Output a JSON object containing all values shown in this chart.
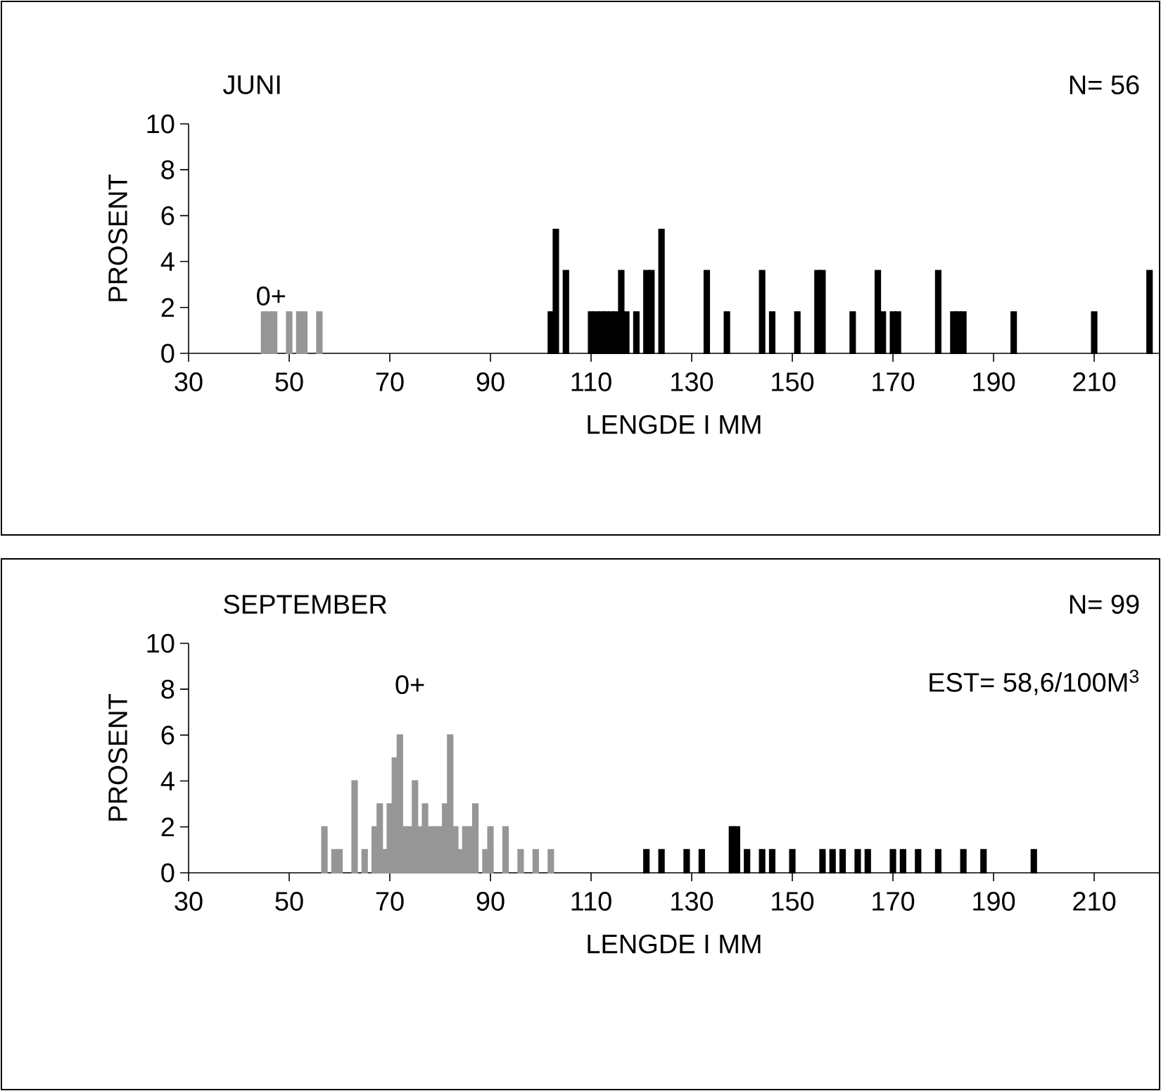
{
  "chart_data": [
    {
      "type": "bar",
      "title": "JUNI",
      "xlabel": "LENGDE I MM",
      "ylabel": "PROSENT",
      "annotations": [
        "N= 56",
        "0+"
      ],
      "xlim": [
        30,
        223
      ],
      "xticks": [
        30,
        50,
        70,
        90,
        110,
        130,
        150,
        170,
        190,
        210
      ],
      "ylim": [
        0,
        10
      ],
      "yticks": [
        0,
        2,
        4,
        6,
        8,
        10
      ],
      "series": [
        {
          "color": "#969696",
          "x": [
            45,
            46,
            47,
            50,
            52,
            53,
            56
          ],
          "values": [
            1.8,
            1.8,
            1.8,
            1.8,
            1.8,
            1.8,
            1.8
          ]
        },
        {
          "color": "#000000",
          "x": [
            102,
            103,
            105,
            110,
            111,
            112,
            113,
            114,
            115,
            116,
            117,
            119,
            121,
            122,
            124,
            133,
            137,
            144,
            146,
            151,
            155,
            156,
            162,
            167,
            168,
            170,
            171,
            179,
            182,
            183,
            184,
            194,
            210,
            221
          ],
          "values": [
            1.8,
            5.4,
            3.6,
            1.8,
            1.8,
            1.8,
            1.8,
            1.8,
            1.8,
            3.6,
            1.8,
            1.8,
            3.6,
            3.6,
            5.4,
            3.6,
            1.8,
            3.6,
            1.8,
            1.8,
            3.6,
            3.6,
            1.8,
            3.6,
            1.8,
            1.8,
            1.8,
            3.6,
            1.8,
            1.8,
            1.8,
            1.8,
            1.8,
            3.6
          ]
        }
      ]
    },
    {
      "type": "bar",
      "title": "SEPTEMBER",
      "xlabel": "LENGDE I MM",
      "ylabel": "PROSENT",
      "annotations": [
        "N= 99",
        "EST= 58,6/100M$^{3}$",
        "0+"
      ],
      "xlim": [
        30,
        223
      ],
      "xticks": [
        30,
        50,
        70,
        90,
        110,
        130,
        150,
        170,
        190,
        210
      ],
      "ylim": [
        0,
        10
      ],
      "yticks": [
        0,
        2,
        4,
        6,
        8,
        10
      ],
      "series": [
        {
          "color": "#969696",
          "x": [
            57,
            59,
            60,
            63,
            65,
            67,
            68,
            69,
            70,
            71,
            72,
            73,
            74,
            75,
            76,
            77,
            78,
            79,
            80,
            81,
            82,
            83,
            84,
            85,
            86,
            87,
            89,
            90,
            93,
            96,
            99,
            102
          ],
          "values": [
            2,
            1,
            1,
            4,
            1,
            2,
            3,
            1,
            3,
            5,
            6,
            2,
            2,
            4,
            2,
            3,
            2,
            2,
            2,
            3,
            6,
            2,
            1,
            2,
            2,
            3,
            1,
            2,
            2,
            1,
            1,
            1
          ]
        },
        {
          "color": "#000000",
          "x": [
            121,
            124,
            129,
            132,
            138,
            139,
            141,
            144,
            146,
            150,
            156,
            158,
            160,
            163,
            165,
            170,
            172,
            175,
            179,
            184,
            188,
            198
          ],
          "values": [
            1,
            1,
            1,
            1,
            2,
            2,
            1,
            1,
            1,
            1,
            1,
            1,
            1,
            1,
            1,
            1,
            1,
            1,
            1,
            1,
            1,
            1
          ]
        }
      ]
    }
  ]
}
